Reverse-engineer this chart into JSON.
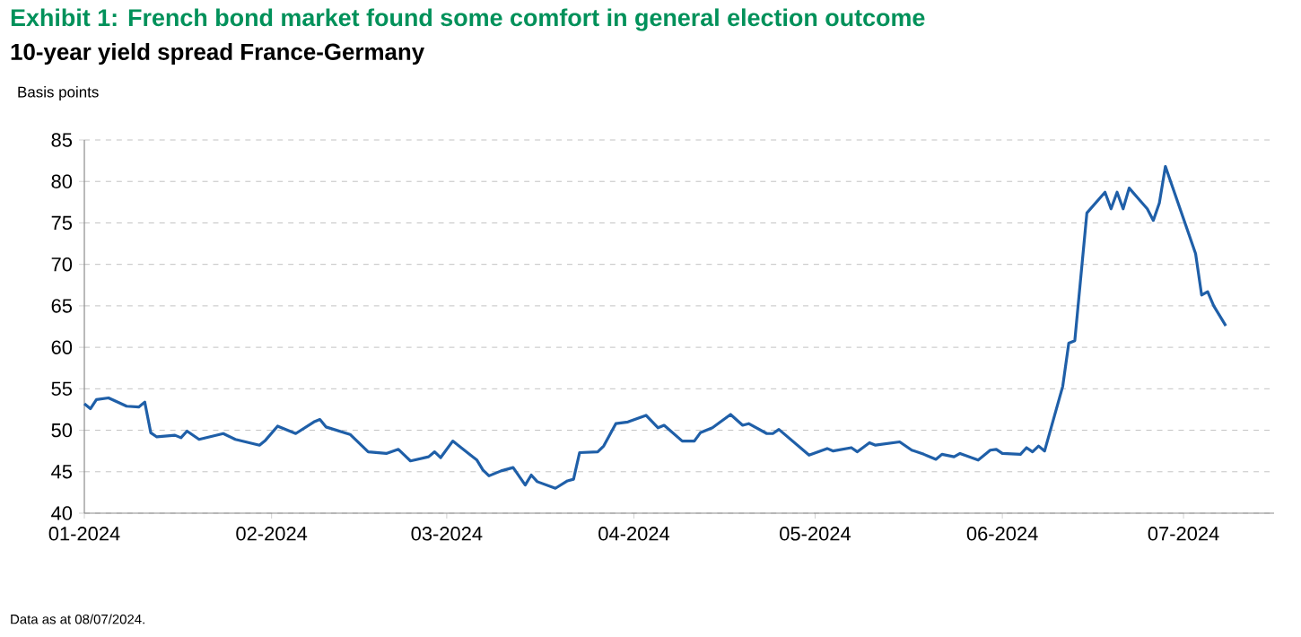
{
  "chart_data": {
    "type": "line",
    "title": "Exhibit 1: French bond market found some comfort in general election outcome",
    "subtitle": "10-year yield spread France-Germany",
    "ylabel": "Basis points",
    "annotations": [
      "Data as at 08/07/2024."
    ],
    "x": [
      "2024-01-01",
      "2024-01-02",
      "2024-01-03",
      "2024-01-05",
      "2024-01-08",
      "2024-01-10",
      "2024-01-11",
      "2024-01-12",
      "2024-01-13",
      "2024-01-16",
      "2024-01-17",
      "2024-01-18",
      "2024-01-20",
      "2024-01-24",
      "2024-01-26",
      "2024-01-30",
      "2024-01-31",
      "2024-02-02",
      "2024-02-05",
      "2024-02-08",
      "2024-02-09",
      "2024-02-10",
      "2024-02-14",
      "2024-02-17",
      "2024-02-20",
      "2024-02-22",
      "2024-02-24",
      "2024-02-27",
      "2024-02-28",
      "2024-02-29",
      "2024-03-02",
      "2024-03-06",
      "2024-03-07",
      "2024-03-08",
      "2024-03-10",
      "2024-03-12",
      "2024-03-14",
      "2024-03-15",
      "2024-03-16",
      "2024-03-19",
      "2024-03-21",
      "2024-03-22",
      "2024-03-23",
      "2024-03-26",
      "2024-03-27",
      "2024-03-29",
      "2024-03-31",
      "2024-04-03",
      "2024-04-05",
      "2024-04-06",
      "2024-04-09",
      "2024-04-11",
      "2024-04-12",
      "2024-04-14",
      "2024-04-17",
      "2024-04-19",
      "2024-04-20",
      "2024-04-23",
      "2024-04-24",
      "2024-04-25",
      "2024-04-30",
      "2024-05-03",
      "2024-05-04",
      "2024-05-07",
      "2024-05-08",
      "2024-05-10",
      "2024-05-11",
      "2024-05-15",
      "2024-05-17",
      "2024-05-19",
      "2024-05-21",
      "2024-05-22",
      "2024-05-24",
      "2024-05-25",
      "2024-05-28",
      "2024-05-30",
      "2024-05-31",
      "2024-06-01",
      "2024-06-04",
      "2024-06-05",
      "2024-06-06",
      "2024-06-07",
      "2024-06-08",
      "2024-06-11",
      "2024-06-12",
      "2024-06-13",
      "2024-06-15",
      "2024-06-18",
      "2024-06-19",
      "2024-06-20",
      "2024-06-21",
      "2024-06-22",
      "2024-06-25",
      "2024-06-26",
      "2024-06-27",
      "2024-06-28",
      "2024-07-03",
      "2024-07-04",
      "2024-07-05",
      "2024-07-06",
      "2024-07-08"
    ],
    "series": [
      {
        "color": "#1f5fa8",
        "values": [
          53.2,
          52.6,
          53.7,
          53.9,
          52.9,
          52.8,
          53.4,
          49.7,
          49.2,
          49.4,
          49.1,
          49.9,
          48.9,
          49.6,
          48.9,
          48.2,
          48.8,
          50.5,
          49.6,
          51.0,
          51.3,
          50.4,
          49.5,
          47.4,
          47.2,
          47.7,
          46.3,
          46.8,
          47.4,
          46.7,
          48.7,
          46.4,
          45.2,
          44.5,
          45.1,
          45.5,
          43.4,
          44.6,
          43.8,
          43.0,
          43.9,
          44.1,
          47.3,
          47.4,
          48.1,
          50.8,
          51.0,
          51.8,
          50.3,
          50.6,
          48.7,
          48.7,
          49.7,
          50.3,
          51.9,
          50.6,
          50.8,
          49.6,
          49.6,
          50.1,
          47.0,
          47.8,
          47.5,
          47.9,
          47.4,
          48.5,
          48.2,
          48.6,
          47.6,
          47.1,
          46.5,
          47.1,
          46.8,
          47.2,
          46.4,
          47.6,
          47.7,
          47.2,
          47.1,
          47.9,
          47.4,
          48.1,
          47.5,
          55.3,
          60.5,
          60.8,
          76.2,
          78.7,
          76.7,
          78.7,
          76.7,
          79.2,
          76.7,
          75.3,
          77.4,
          81.8,
          71.3,
          66.3,
          66.7,
          65.0,
          62.6
        ]
      }
    ],
    "xlim": [
      "2024-01-01",
      "2024-07-16"
    ],
    "xticks": [
      {
        "value": "2024-01-01",
        "label": "01-2024"
      },
      {
        "value": "2024-02-01",
        "label": "02-2024"
      },
      {
        "value": "2024-03-01",
        "label": "03-2024"
      },
      {
        "value": "2024-04-01",
        "label": "04-2024"
      },
      {
        "value": "2024-05-01",
        "label": "05-2024"
      },
      {
        "value": "2024-06-01",
        "label": "06-2024"
      },
      {
        "value": "2024-07-01",
        "label": "07-2024"
      }
    ],
    "ylim": [
      40,
      85
    ],
    "yticks": [
      40,
      45,
      50,
      55,
      60,
      65,
      70,
      75,
      80,
      85
    ],
    "grid": "y",
    "marker": "none",
    "line_style": "solid"
  }
}
